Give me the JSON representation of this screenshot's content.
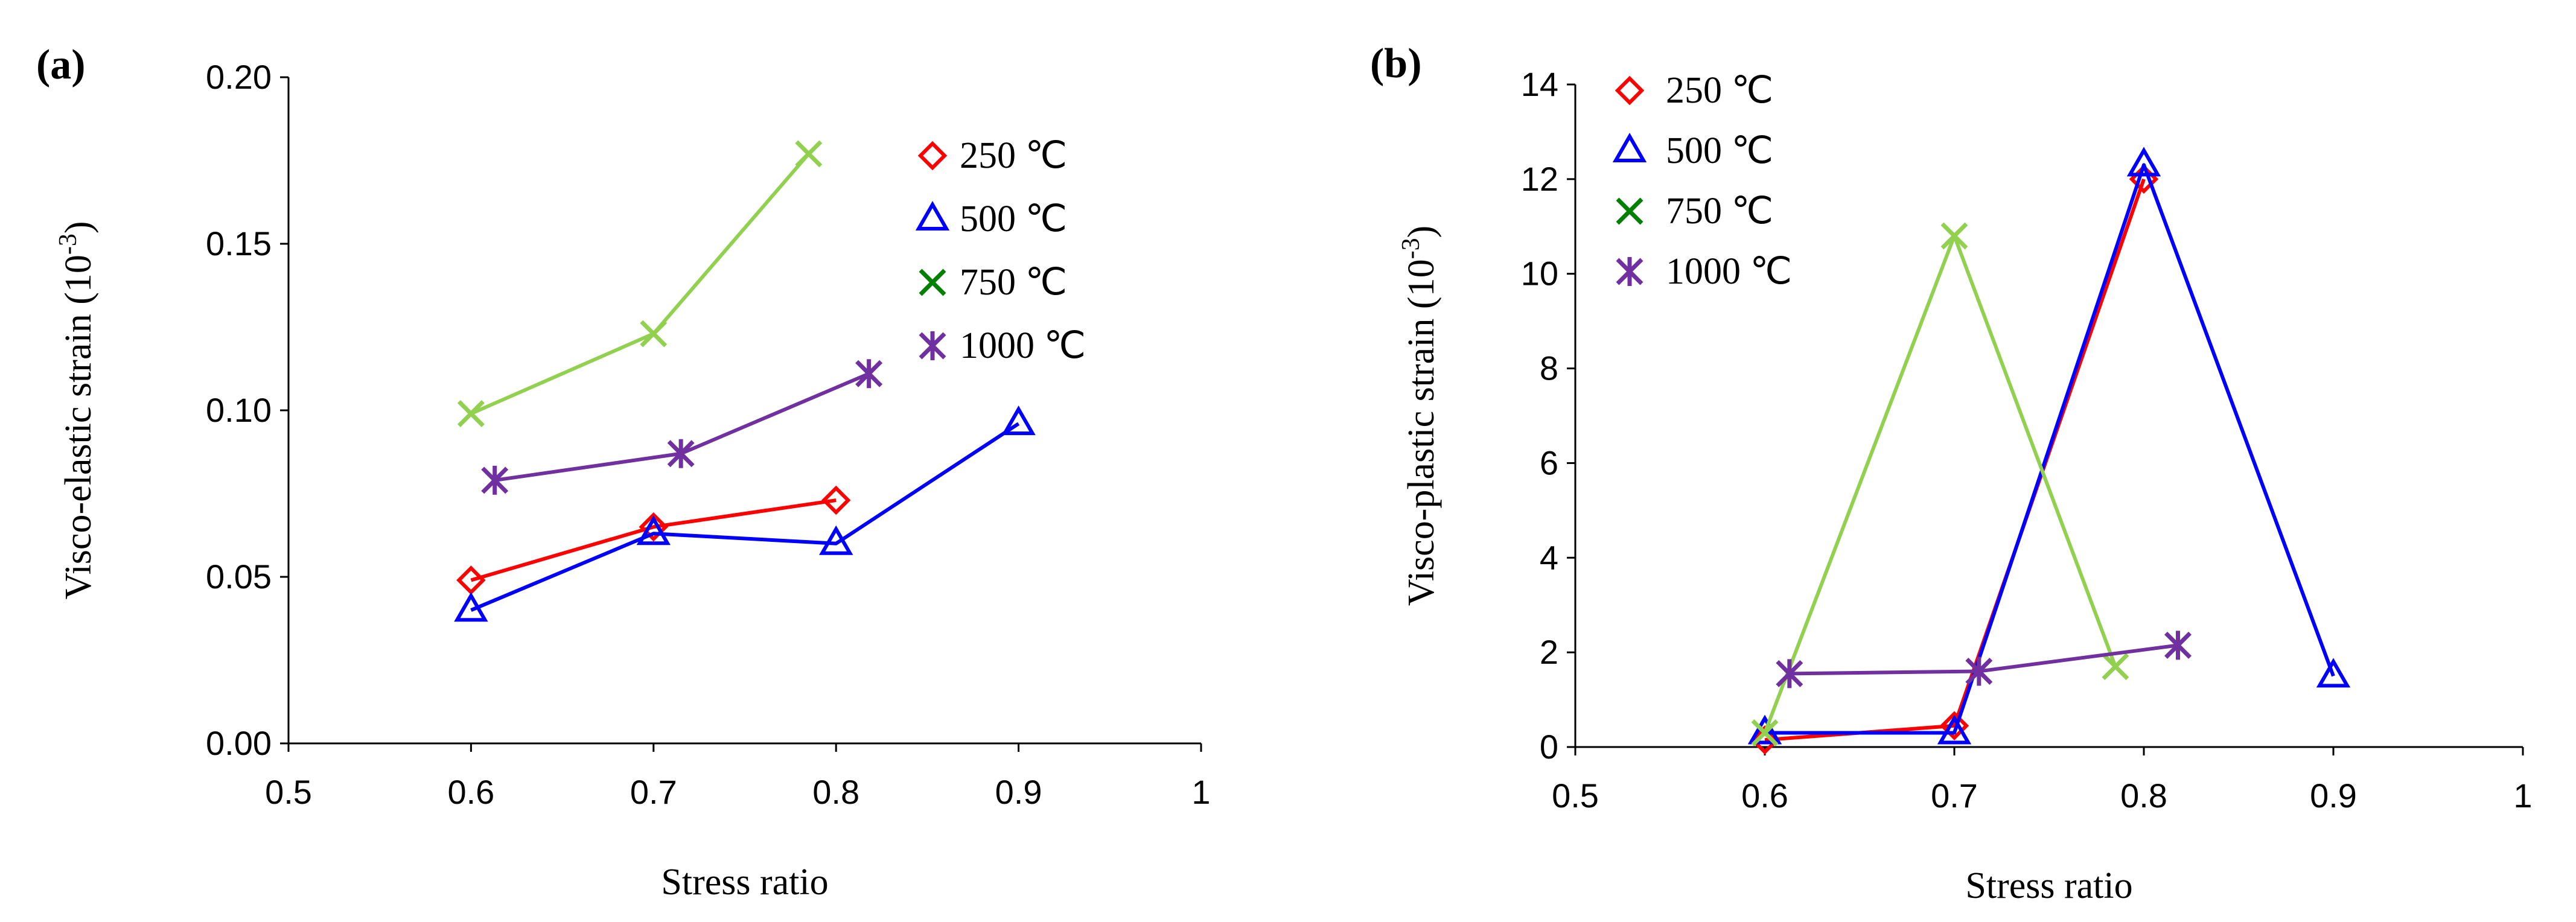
{
  "chart_data": [
    {
      "panel_label": "(a)",
      "type": "line",
      "xlabel": "Stress ratio",
      "ylabel_main": "Visco-elastic strain (10",
      "ylabel_exp": "-3",
      "ylabel_close": ")",
      "xlim": [
        0.5,
        1
      ],
      "ylim": [
        0,
        0.2
      ],
      "xticks": [
        "0.5",
        "0.6",
        "0.7",
        "0.8",
        "0.9",
        "1"
      ],
      "yticks": [
        "0.00",
        "0.05",
        "0.10",
        "0.15",
        "0.20"
      ],
      "legend_position": "top-right",
      "series": [
        {
          "name": "250 ℃",
          "color": "#ff0000",
          "marker": "diamond",
          "x": [
            0.6,
            0.7,
            0.8
          ],
          "y": [
            0.049,
            0.065,
            0.073
          ]
        },
        {
          "name": "500 ℃",
          "color": "#0000ff",
          "marker": "triangle",
          "x": [
            0.6,
            0.7,
            0.8,
            0.9
          ],
          "y": [
            0.04,
            0.063,
            0.06,
            0.096
          ]
        },
        {
          "name": "750 ℃",
          "color": "#92d050",
          "legend_color": "#008000",
          "marker": "x",
          "x": [
            0.6,
            0.7,
            0.785
          ],
          "y": [
            0.099,
            0.123,
            0.177
          ]
        },
        {
          "name": "1000 ℃",
          "color": "#7030a0",
          "marker": "star",
          "x": [
            0.613,
            0.715,
            0.818
          ],
          "y": [
            0.079,
            0.087,
            0.111
          ]
        }
      ]
    },
    {
      "panel_label": "(b)",
      "type": "line",
      "xlabel": "Stress ratio",
      "ylabel_main": "Visco-plastic strain (10",
      "ylabel_exp": "-3",
      "ylabel_close": ")",
      "xlim": [
        0.5,
        1
      ],
      "ylim": [
        0,
        14
      ],
      "xticks": [
        "0.5",
        "0.6",
        "0.7",
        "0.8",
        "0.9",
        "1"
      ],
      "yticks": [
        "0",
        "2",
        "4",
        "6",
        "8",
        "10",
        "12",
        "14"
      ],
      "legend_position": "top-left",
      "series": [
        {
          "name": "250 ℃",
          "color": "#ff0000",
          "marker": "diamond",
          "x": [
            0.6,
            0.7,
            0.8
          ],
          "y": [
            0.15,
            0.45,
            12.0
          ]
        },
        {
          "name": "500 ℃",
          "color": "#0000ff",
          "marker": "triangle",
          "x": [
            0.6,
            0.7,
            0.8,
            0.9
          ],
          "y": [
            0.3,
            0.3,
            12.3,
            1.5
          ]
        },
        {
          "name": "750 ℃",
          "color": "#92d050",
          "legend_color": "#008000",
          "marker": "x",
          "x": [
            0.6,
            0.7,
            0.785
          ],
          "y": [
            0.3,
            10.8,
            1.7
          ]
        },
        {
          "name": "1000 ℃",
          "color": "#7030a0",
          "marker": "star",
          "x": [
            0.613,
            0.713,
            0.818
          ],
          "y": [
            1.55,
            1.6,
            2.15
          ]
        }
      ]
    }
  ]
}
